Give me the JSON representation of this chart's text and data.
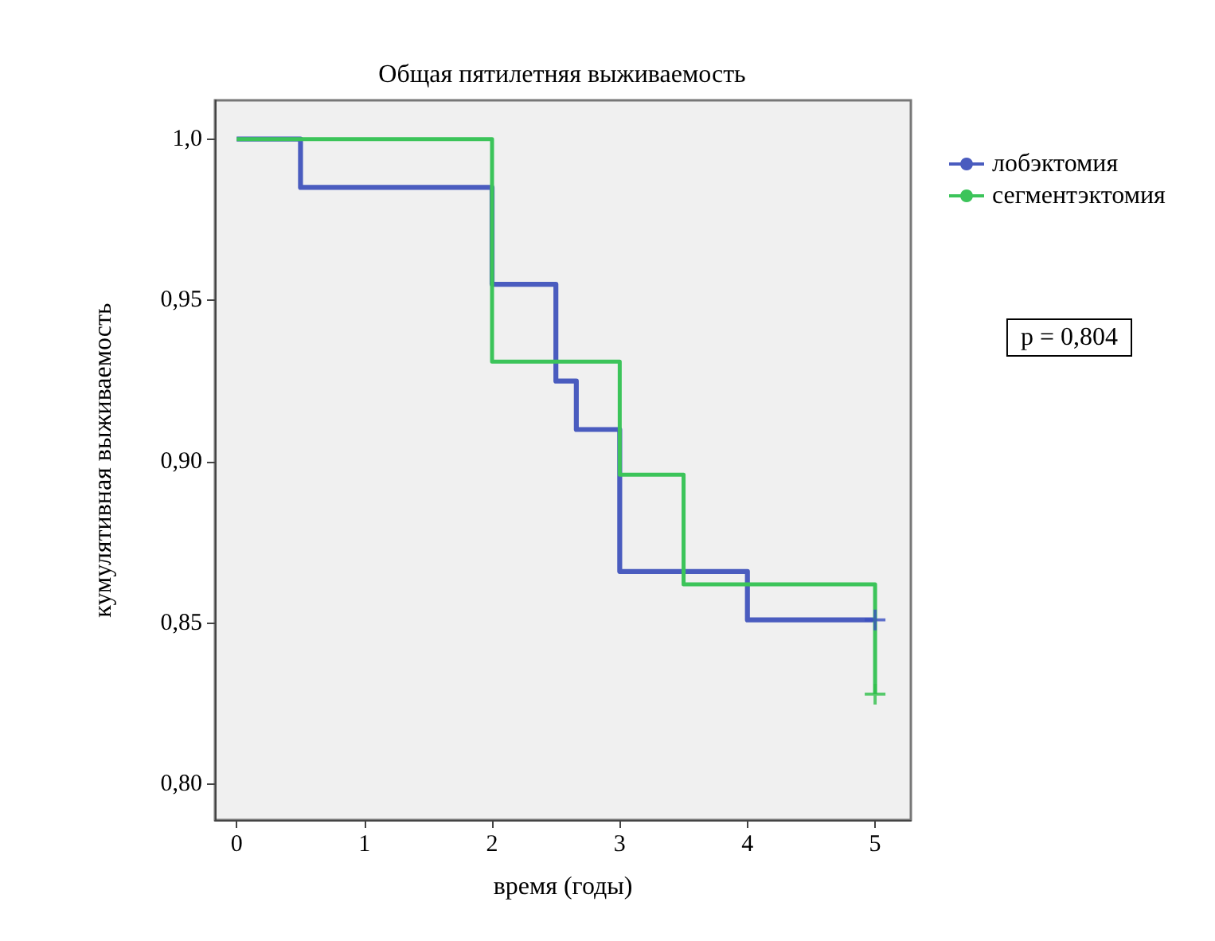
{
  "chart_data": {
    "type": "step",
    "title": "Общая пятилетняя выживаемость",
    "xlabel": "время (годы)",
    "ylabel": "кумулятивная выживаемость",
    "series": [
      {
        "name": "лобэктомия",
        "color": "#4a5cbf",
        "x": [
          0,
          0.5,
          2,
          2.5,
          2.66,
          3,
          4,
          5
        ],
        "values": [
          1,
          0.985,
          0.955,
          0.925,
          0.91,
          0.866,
          0.851,
          0.851
        ]
      },
      {
        "name": "сегментэктомия",
        "color": "#3cc45a",
        "x": [
          0,
          2,
          3,
          3.5,
          5,
          5
        ],
        "values": [
          1,
          0.931,
          0.896,
          0.862,
          0.862,
          0.828
        ]
      },
      {
        "type": "scatter",
        "marker": "cross",
        "color": "#3a4fc0",
        "x": [
          5
        ],
        "values": [
          0.851
        ]
      },
      {
        "type": "scatter",
        "marker": "cross",
        "color": "#2fbf4a",
        "x": [
          5
        ],
        "values": [
          0.828
        ]
      }
    ],
    "xlim": [
      -0.17,
      5.28
    ],
    "ylim": [
      0.789,
      1.012
    ],
    "xticks": [
      0,
      1,
      2,
      3,
      4,
      5
    ],
    "yticks": [
      {
        "value": 0.8,
        "label": "0,80"
      },
      {
        "value": 0.85,
        "label": "0,85"
      },
      {
        "value": 0.9,
        "label": "0,90"
      },
      {
        "value": 0.95,
        "label": "0,95"
      },
      {
        "value": 1.0,
        "label": "1,0"
      }
    ],
    "grid": false,
    "legend": "top right",
    "annotations": [
      "p = 0,804"
    ]
  }
}
